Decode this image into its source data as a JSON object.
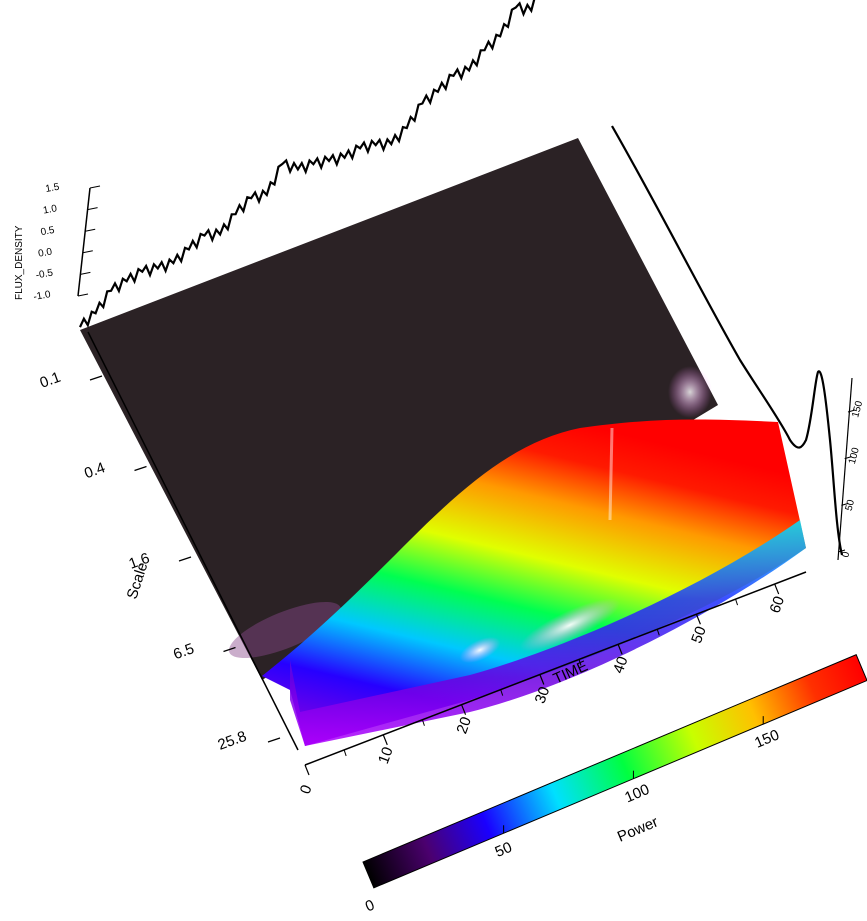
{
  "chart_data": {
    "type": "surface",
    "title": "",
    "time_axis": {
      "label": "TIME",
      "ticks": [
        "0",
        "10",
        "20",
        "30",
        "40",
        "50",
        "60"
      ],
      "range": [
        0,
        64
      ]
    },
    "scale_axis": {
      "label": "Scale",
      "ticks": [
        "0.1",
        "0.4",
        "1.6",
        "6.5",
        "25.8"
      ],
      "log": true
    },
    "power_colorbar": {
      "label": "Power",
      "ticks": [
        "0",
        "50",
        "100",
        "150"
      ],
      "range": [
        0,
        190
      ],
      "colormap": "rainbow"
    },
    "flux_series": {
      "ylabel": "FLUX_DENSITY",
      "yticks": [
        "-1.0",
        "-0.5",
        "0.0",
        "0.5",
        "1.0",
        "1.5"
      ],
      "x": [
        0,
        2,
        4,
        6,
        8,
        10,
        12,
        14,
        16,
        18,
        20,
        22,
        24,
        26,
        28,
        30,
        32,
        34,
        36,
        38,
        40,
        42,
        44,
        46,
        48,
        50,
        52,
        54,
        56,
        58,
        60,
        62,
        64
      ],
      "y": [
        0.0,
        0.15,
        0.5,
        0.55,
        0.6,
        0.5,
        0.45,
        0.6,
        0.75,
        0.6,
        0.9,
        1.1,
        1.0,
        1.55,
        1.25,
        1.2,
        1.1,
        1.0,
        1.05,
        0.95,
        0.8,
        1.0,
        1.4,
        1.5,
        1.7,
        1.65,
        1.95,
        2.1,
        2.6,
        2.35,
        3.1,
        2.6,
        2.7
      ]
    },
    "scale_profile": {
      "ticks": [
        "0",
        "50",
        "100",
        "150"
      ]
    }
  }
}
